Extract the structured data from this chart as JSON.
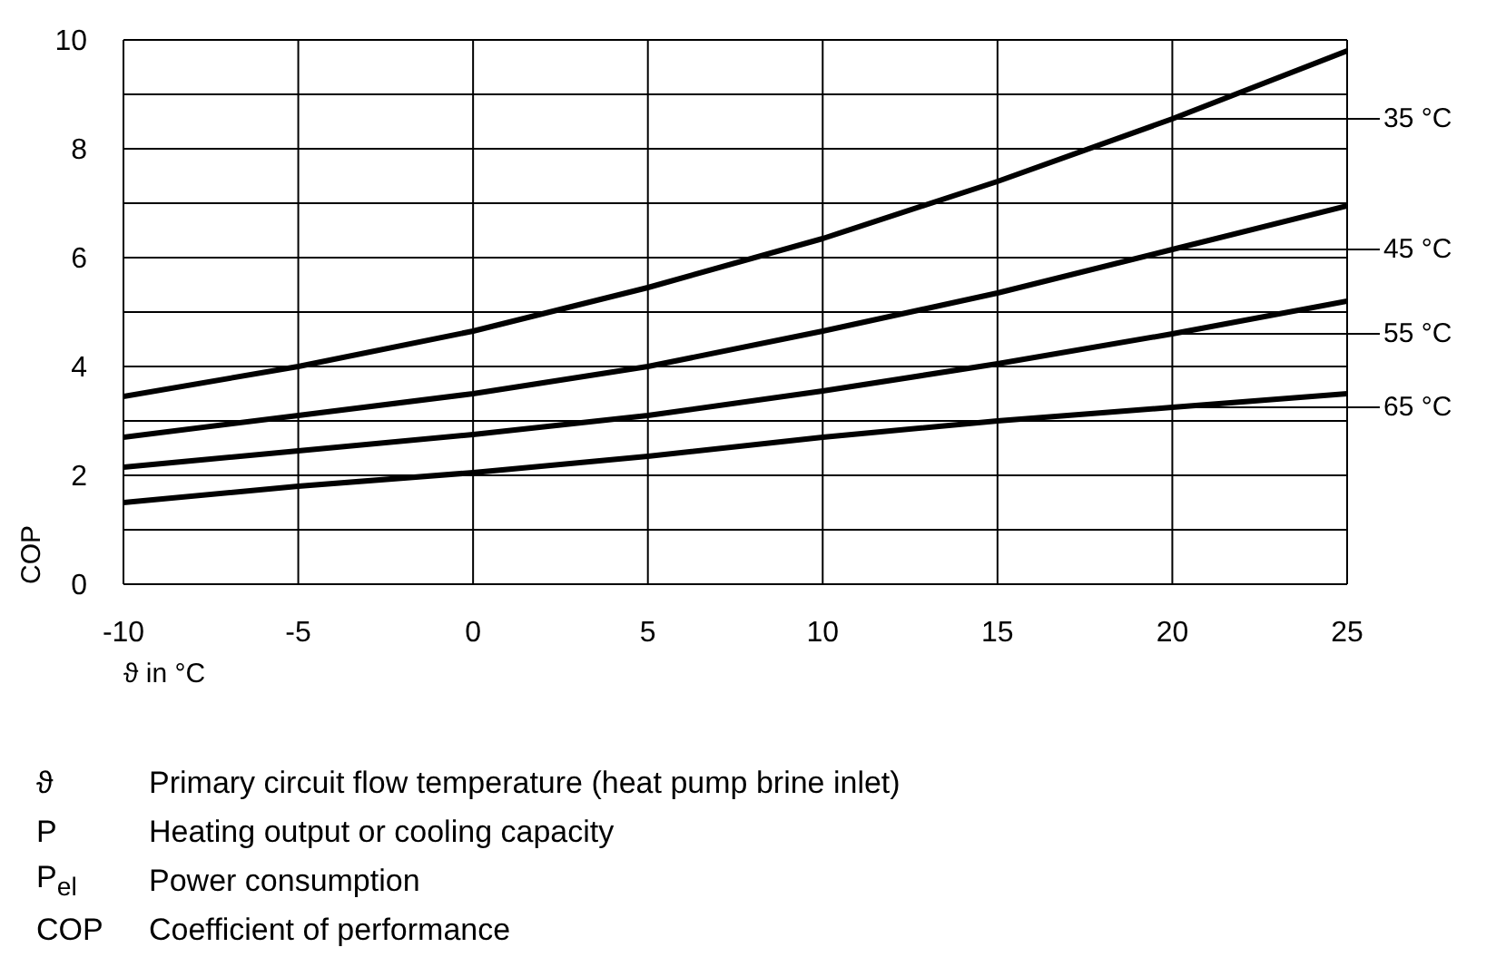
{
  "chart_data": {
    "type": "line",
    "xlabel": "ϑ in °C",
    "ylabel": "COP",
    "x": [
      -10,
      -5,
      0,
      5,
      10,
      15,
      20,
      25
    ],
    "series": [
      {
        "name": "35 °C",
        "color": "#000000",
        "values": [
          3.45,
          4.0,
          4.65,
          5.45,
          6.35,
          7.4,
          8.55,
          9.8
        ]
      },
      {
        "name": "45 °C",
        "color": "#000000",
        "values": [
          2.7,
          3.1,
          3.5,
          4.0,
          4.65,
          5.35,
          6.15,
          6.95
        ]
      },
      {
        "name": "55 °C",
        "color": "#000000",
        "values": [
          2.15,
          2.45,
          2.75,
          3.1,
          3.55,
          4.05,
          4.6,
          5.2
        ]
      },
      {
        "name": "65 °C",
        "color": "#000000",
        "values": [
          1.5,
          1.8,
          2.05,
          2.35,
          2.7,
          3.0,
          3.25,
          3.5
        ]
      }
    ],
    "xlim": [
      -10,
      25
    ],
    "xticks": [
      -10,
      -5,
      0,
      5,
      10,
      15,
      20,
      25
    ],
    "ylim": [
      0,
      10
    ],
    "yticks": [
      0,
      {
        "value": 1,
        "label": null
      },
      2,
      {
        "value": 3,
        "label": null
      },
      4,
      {
        "value": 5,
        "label": null
      },
      6,
      {
        "value": 7,
        "label": null
      },
      8,
      {
        "value": 9,
        "label": null
      },
      10
    ],
    "grid": true,
    "marker": "none",
    "line_style": "solid",
    "legend": false,
    "annotations": [
      "ϑ Primary circuit flow temperature (heat pump brine inlet)",
      "P Heating output or cooling capacity",
      "P$_{el}$ Power consumption",
      "COP Coefficient of performance"
    ]
  }
}
